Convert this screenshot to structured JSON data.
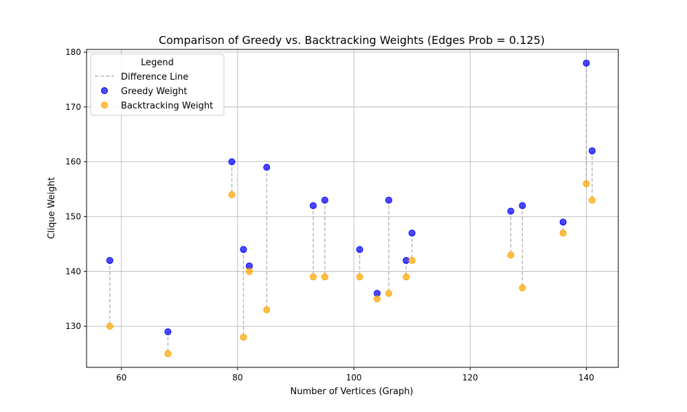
{
  "chart_data": {
    "type": "scatter",
    "title": "Comparison of Greedy vs. Backtracking Weights (Edges Prob = 0.125)",
    "xlabel": "Number of Vertices (Graph)",
    "ylabel": "Clique Weight",
    "xlim": [
      54,
      145.5
    ],
    "ylim": [
      122.5,
      180.5
    ],
    "xticks": [
      60,
      80,
      100,
      120,
      140
    ],
    "yticks": [
      130,
      140,
      150,
      160,
      170,
      180
    ],
    "grid": true,
    "legend": {
      "title": "Legend",
      "placement": "top-left",
      "entries": [
        "Difference Line",
        "Greedy Weight",
        "Backtracking Weight"
      ]
    },
    "x": [
      58,
      68,
      79,
      81,
      82,
      85,
      93,
      95,
      101,
      104,
      106,
      109,
      110,
      127,
      129,
      136,
      140,
      141
    ],
    "series": [
      {
        "name": "Greedy Weight",
        "color": "#0000ff",
        "values": [
          142,
          129,
          160,
          144,
          141,
          159,
          152,
          153,
          144,
          136,
          153,
          142,
          147,
          151,
          152,
          149,
          178,
          162
        ]
      },
      {
        "name": "Backtracking Weight",
        "color": "#ffa500",
        "values": [
          130,
          125,
          154,
          128,
          140,
          133,
          139,
          139,
          139,
          135,
          136,
          139,
          142,
          143,
          137,
          147,
          156,
          153
        ]
      }
    ],
    "difference_line_color": "#999999"
  }
}
